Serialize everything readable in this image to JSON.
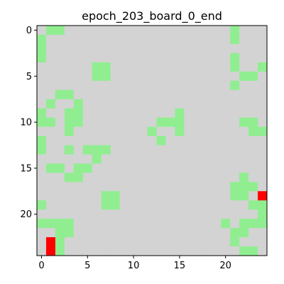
{
  "chart_data": {
    "type": "heatmap",
    "title": "epoch_203_board_0_end",
    "rows": 25,
    "cols": 25,
    "xlim": [
      -0.5,
      24.5
    ],
    "ylim": [
      24.5,
      -0.5
    ],
    "xticks": [
      0,
      5,
      10,
      15,
      20
    ],
    "yticks": [
      0,
      5,
      10,
      15,
      20
    ],
    "grid": false,
    "colors": {
      "empty": "#d3d3d3",
      "green": "#90ee90",
      "red": "#ff0000"
    },
    "green_cells": [
      [
        0,
        1
      ],
      [
        0,
        2
      ],
      [
        0,
        21
      ],
      [
        1,
        0
      ],
      [
        1,
        21
      ],
      [
        2,
        0
      ],
      [
        3,
        0
      ],
      [
        3,
        21
      ],
      [
        4,
        6
      ],
      [
        4,
        7
      ],
      [
        4,
        21
      ],
      [
        4,
        24
      ],
      [
        5,
        6
      ],
      [
        5,
        7
      ],
      [
        5,
        22
      ],
      [
        5,
        23
      ],
      [
        6,
        21
      ],
      [
        7,
        2
      ],
      [
        7,
        3
      ],
      [
        8,
        1
      ],
      [
        8,
        4
      ],
      [
        9,
        0
      ],
      [
        9,
        3
      ],
      [
        9,
        4
      ],
      [
        9,
        15
      ],
      [
        10,
        0
      ],
      [
        10,
        1
      ],
      [
        10,
        3
      ],
      [
        10,
        4
      ],
      [
        10,
        13
      ],
      [
        10,
        14
      ],
      [
        10,
        15
      ],
      [
        10,
        22
      ],
      [
        10,
        23
      ],
      [
        11,
        3
      ],
      [
        11,
        12
      ],
      [
        11,
        15
      ],
      [
        11,
        23
      ],
      [
        11,
        24
      ],
      [
        12,
        0
      ],
      [
        12,
        13
      ],
      [
        13,
        0
      ],
      [
        13,
        3
      ],
      [
        13,
        5
      ],
      [
        13,
        6
      ],
      [
        13,
        7
      ],
      [
        14,
        6
      ],
      [
        15,
        1
      ],
      [
        15,
        2
      ],
      [
        15,
        4
      ],
      [
        15,
        5
      ],
      [
        16,
        3
      ],
      [
        16,
        4
      ],
      [
        16,
        22
      ],
      [
        17,
        21
      ],
      [
        17,
        22
      ],
      [
        17,
        23
      ],
      [
        18,
        7
      ],
      [
        18,
        8
      ],
      [
        18,
        21
      ],
      [
        18,
        22
      ],
      [
        19,
        0
      ],
      [
        19,
        7
      ],
      [
        19,
        8
      ],
      [
        19,
        23
      ],
      [
        19,
        24
      ],
      [
        20,
        24
      ],
      [
        21,
        0
      ],
      [
        21,
        1
      ],
      [
        21,
        2
      ],
      [
        21,
        3
      ],
      [
        21,
        20
      ],
      [
        21,
        22
      ],
      [
        21,
        23
      ],
      [
        21,
        24
      ],
      [
        22,
        2
      ],
      [
        22,
        3
      ],
      [
        22,
        21
      ],
      [
        22,
        22
      ],
      [
        23,
        2
      ],
      [
        23,
        21
      ],
      [
        24,
        2
      ],
      [
        24,
        22
      ],
      [
        24,
        23
      ]
    ],
    "red_cells": [
      [
        18,
        24
      ],
      [
        23,
        1
      ],
      [
        24,
        1
      ]
    ]
  }
}
